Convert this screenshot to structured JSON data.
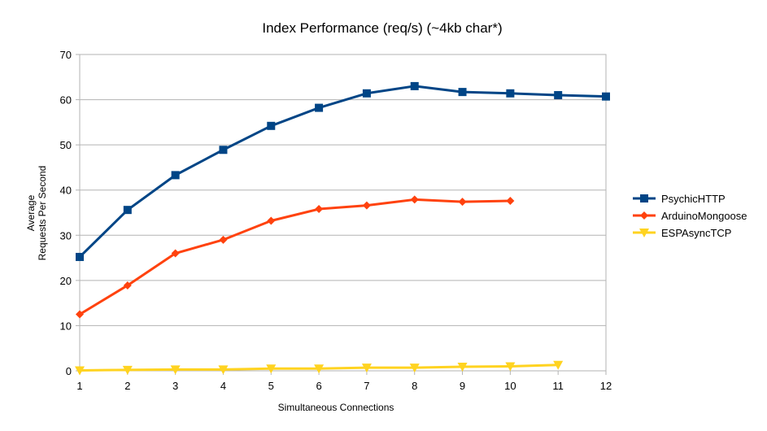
{
  "chart_data": {
    "type": "line",
    "title": "Index Performance (req/s) (~4kb char*)",
    "xlabel": "Simultaneous Connections",
    "ylabel_lines": [
      "Average",
      "Requests Per Second"
    ],
    "x": [
      1,
      2,
      3,
      4,
      5,
      6,
      7,
      8,
      9,
      10,
      11,
      12
    ],
    "x_ticks": [
      "1",
      "2",
      "3",
      "4",
      "5",
      "6",
      "7",
      "8",
      "9",
      "10",
      "11",
      "12"
    ],
    "xlim": [
      1,
      12
    ],
    "ylim": [
      0,
      70
    ],
    "y_ticks": [
      0,
      10,
      20,
      30,
      40,
      50,
      60,
      70
    ],
    "grid": true,
    "legend_position": "right",
    "series": [
      {
        "name": "PsychicHTTP",
        "color": "#004586",
        "marker": "square",
        "values": [
          25.2,
          35.6,
          43.3,
          48.9,
          54.2,
          58.2,
          61.4,
          63.0,
          61.7,
          61.4,
          61.0,
          60.7
        ]
      },
      {
        "name": "ArduinoMongoose",
        "color": "#ff420e",
        "marker": "diamond",
        "values": [
          12.5,
          18.9,
          26.0,
          29.0,
          33.2,
          35.8,
          36.6,
          37.9,
          37.4,
          37.6,
          null,
          null
        ]
      },
      {
        "name": "ESPAsyncTCP",
        "color": "#ffd320",
        "marker": "triangle-down",
        "values": [
          0.1,
          0.2,
          0.3,
          0.3,
          0.5,
          0.5,
          0.7,
          0.7,
          0.9,
          1.0,
          1.3,
          null
        ]
      }
    ]
  }
}
